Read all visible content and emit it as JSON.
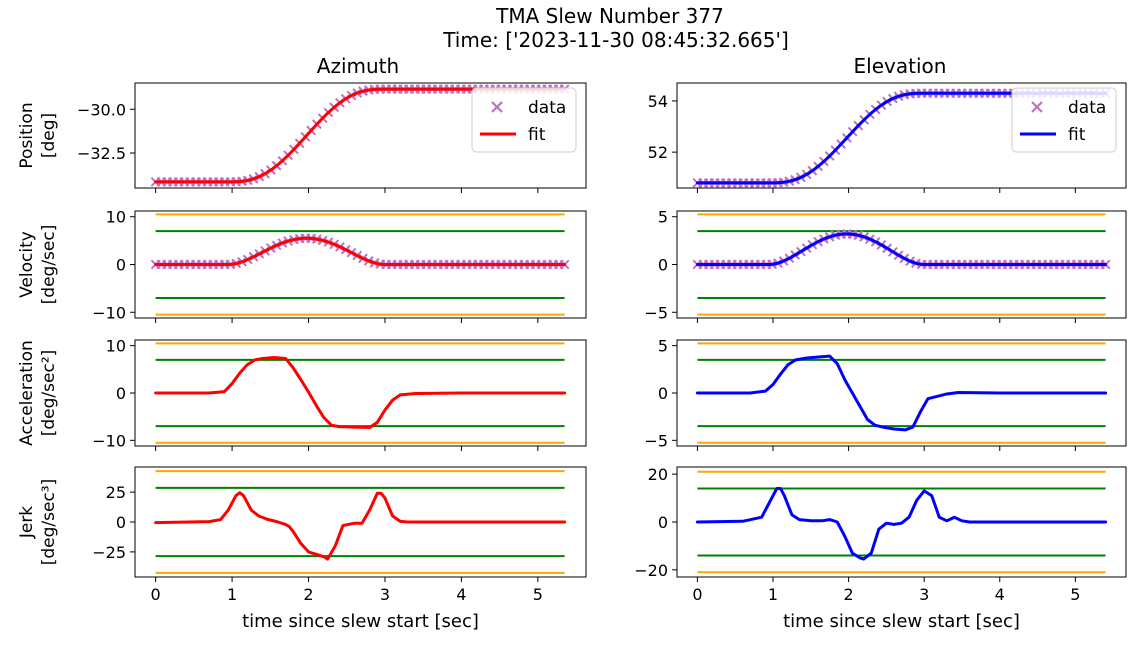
{
  "figure": {
    "title_line1": "TMA Slew Number 377",
    "title_line2": "Time: ['2023-11-30 08:45:32.665']"
  },
  "colors": {
    "az_fit": "#ff0000",
    "el_fit": "#0000ff",
    "data": "#bf6fc4",
    "limit_outer": "#ffa500",
    "limit_inner": "#008000"
  },
  "chart_data": [
    {
      "id": "az-position",
      "type": "line",
      "column": "Azimuth",
      "title": "Azimuth",
      "ylabel": "Position",
      "yunit": "[deg]",
      "ylim": [
        -34.5,
        -28.5
      ],
      "yticks": [
        -30.0,
        -32.5
      ],
      "ytick_labels": [
        "−30.0",
        "−32.5"
      ],
      "xlim": [
        -0.27,
        5.63
      ],
      "show_xlabels": false,
      "legend": {
        "position": "upper right",
        "entries": [
          "data",
          "fit"
        ]
      },
      "series": [
        {
          "name": "data",
          "marker": "x",
          "profile": "position",
          "x0": 0,
          "x1": 5.35,
          "start": -34.15,
          "end": -28.85,
          "t_start": 0.95,
          "t_end": 3.0
        },
        {
          "name": "fit",
          "profile": "position",
          "x0": 0,
          "x1": 5.35,
          "start": -34.15,
          "end": -28.85,
          "t_start": 0.95,
          "t_end": 3.0
        }
      ]
    },
    {
      "id": "az-velocity",
      "type": "line",
      "column": "Azimuth",
      "ylabel": "Velocity",
      "yunit": "[deg/sec]",
      "ylim": [
        -11.2,
        11.2
      ],
      "yticks": [
        10,
        0,
        -10
      ],
      "ytick_labels": [
        "10",
        "0",
        "−10"
      ],
      "xlim": [
        -0.27,
        5.63
      ],
      "show_xlabels": false,
      "limits": {
        "inner": 7.0,
        "outer": 10.5,
        "x0": 0,
        "x1": 5.35
      },
      "series": [
        {
          "name": "data",
          "marker": "x",
          "profile": "velocity",
          "x0": 0,
          "x1": 5.35,
          "peak": 5.5,
          "t_start": 0.95,
          "t_end": 3.0
        },
        {
          "name": "fit",
          "profile": "velocity",
          "x0": 0,
          "x1": 5.35,
          "peak": 5.5,
          "t_start": 0.95,
          "t_end": 3.0
        }
      ]
    },
    {
      "id": "az-acceleration",
      "type": "line",
      "column": "Azimuth",
      "ylabel": "Acceleration",
      "yunit": "[deg/sec²]",
      "ylim": [
        -11.2,
        11.2
      ],
      "yticks": [
        10,
        0,
        -10
      ],
      "ytick_labels": [
        "10",
        "0",
        "−10"
      ],
      "xlim": [
        -0.27,
        5.63
      ],
      "show_xlabels": false,
      "limits": {
        "inner": 7.0,
        "outer": 10.5,
        "x0": 0,
        "x1": 5.35
      },
      "series": [
        {
          "name": "fit",
          "x": [
            0,
            0.7,
            0.9,
            1.0,
            1.1,
            1.2,
            1.3,
            1.4,
            1.55,
            1.7,
            1.8,
            1.9,
            2.0,
            2.1,
            2.2,
            2.3,
            2.4,
            2.6,
            2.8,
            2.9,
            3.0,
            3.1,
            3.2,
            3.4,
            4.0,
            5.35
          ],
          "y": [
            0,
            0,
            0.3,
            2.0,
            4.2,
            6.0,
            7.0,
            7.3,
            7.5,
            7.3,
            5.3,
            2.8,
            0.2,
            -2.6,
            -5.2,
            -6.8,
            -7.1,
            -7.2,
            -7.3,
            -6.2,
            -3.6,
            -1.5,
            -0.4,
            -0.1,
            0,
            0
          ]
        }
      ]
    },
    {
      "id": "az-jerk",
      "type": "line",
      "column": "Azimuth",
      "ylabel": "Jerk",
      "yunit": "[deg/sec³]",
      "ylim": [
        -46,
        46
      ],
      "yticks": [
        25,
        0,
        -25
      ],
      "ytick_labels": [
        "25",
        "0",
        "−25"
      ],
      "xlim": [
        -0.27,
        5.63
      ],
      "show_xlabels": true,
      "xticks": [
        0,
        1,
        2,
        3,
        4,
        5
      ],
      "xlabel": "time since slew start [sec]",
      "limits": {
        "inner": 28.5,
        "outer": 42.5,
        "x0": 0,
        "x1": 5.35
      },
      "series": [
        {
          "name": "fit",
          "x": [
            0,
            0.7,
            0.85,
            0.95,
            1.05,
            1.1,
            1.15,
            1.25,
            1.35,
            1.45,
            1.6,
            1.7,
            1.75,
            1.8,
            1.9,
            2.0,
            2.1,
            2.2,
            2.25,
            2.35,
            2.45,
            2.6,
            2.7,
            2.8,
            2.9,
            2.95,
            3.0,
            3.1,
            3.2,
            3.3,
            4.0,
            5.35
          ],
          "y": [
            -0.5,
            0.3,
            2,
            10,
            22,
            24.5,
            22,
            10,
            5,
            2.5,
            0,
            -2,
            -4,
            -8,
            -18,
            -25,
            -27,
            -29,
            -31,
            -20,
            -3,
            -1,
            -1,
            10,
            24,
            24,
            20,
            5,
            0.5,
            0,
            0,
            0
          ]
        }
      ]
    },
    {
      "id": "el-position",
      "type": "line",
      "column": "Elevation",
      "title": "Elevation",
      "ylabel": "",
      "yunit": "",
      "ylim": [
        50.6,
        54.7
      ],
      "yticks": [
        54,
        52
      ],
      "ytick_labels": [
        "54",
        "52"
      ],
      "xlim": [
        -0.27,
        5.67
      ],
      "show_xlabels": false,
      "legend": {
        "position": "upper right",
        "entries": [
          "data",
          "fit"
        ]
      },
      "series": [
        {
          "name": "data",
          "marker": "x",
          "profile": "position",
          "x0": 0,
          "x1": 5.4,
          "start": 50.8,
          "end": 54.3,
          "t_start": 0.95,
          "t_end": 3.0
        },
        {
          "name": "fit",
          "profile": "position",
          "x0": 0,
          "x1": 5.4,
          "start": 50.8,
          "end": 54.3,
          "t_start": 0.95,
          "t_end": 3.0
        }
      ]
    },
    {
      "id": "el-velocity",
      "type": "line",
      "column": "Elevation",
      "ylabel": "",
      "yunit": "",
      "ylim": [
        -5.6,
        5.6
      ],
      "yticks": [
        5,
        0,
        -5
      ],
      "ytick_labels": [
        "5",
        "0",
        "−5"
      ],
      "xlim": [
        -0.27,
        5.67
      ],
      "show_xlabels": false,
      "limits": {
        "inner": 3.5,
        "outer": 5.25,
        "x0": 0,
        "x1": 5.4
      },
      "series": [
        {
          "name": "data",
          "marker": "x",
          "profile": "velocity",
          "x0": 0,
          "x1": 5.4,
          "peak": 3.2,
          "t_start": 0.95,
          "t_end": 3.0
        },
        {
          "name": "fit",
          "profile": "velocity",
          "x0": 0,
          "x1": 5.4,
          "peak": 3.2,
          "t_start": 0.95,
          "t_end": 3.0
        }
      ]
    },
    {
      "id": "el-acceleration",
      "type": "line",
      "column": "Elevation",
      "ylabel": "",
      "yunit": "",
      "ylim": [
        -5.6,
        5.6
      ],
      "yticks": [
        5,
        0,
        -5
      ],
      "ytick_labels": [
        "5",
        "0",
        "−5"
      ],
      "xlim": [
        -0.27,
        5.67
      ],
      "show_xlabels": false,
      "limits": {
        "inner": 3.5,
        "outer": 5.25,
        "x0": 0,
        "x1": 5.4
      },
      "series": [
        {
          "name": "fit",
          "x": [
            0,
            0.7,
            0.9,
            1.0,
            1.1,
            1.2,
            1.3,
            1.45,
            1.6,
            1.75,
            1.85,
            1.95,
            2.05,
            2.15,
            2.25,
            2.35,
            2.45,
            2.6,
            2.75,
            2.85,
            2.95,
            3.05,
            3.3,
            3.45,
            4.0,
            5.4
          ],
          "y": [
            0,
            0,
            0.2,
            0.9,
            2.0,
            3.0,
            3.5,
            3.7,
            3.8,
            3.9,
            3.1,
            1.4,
            0.0,
            -1.4,
            -2.8,
            -3.4,
            -3.6,
            -3.8,
            -3.9,
            -3.6,
            -2.0,
            -0.6,
            -0.1,
            0.05,
            0,
            0
          ]
        }
      ]
    },
    {
      "id": "el-jerk",
      "type": "line",
      "column": "Elevation",
      "ylabel": "",
      "yunit": "",
      "ylim": [
        -23,
        23
      ],
      "yticks": [
        20,
        0,
        -20
      ],
      "ytick_labels": [
        "20",
        "0",
        "−20"
      ],
      "xlim": [
        -0.27,
        5.67
      ],
      "show_xlabels": true,
      "xticks": [
        0,
        1,
        2,
        3,
        4,
        5
      ],
      "xlabel": "time since slew start [sec]",
      "limits": {
        "inner": 14.0,
        "outer": 21.0,
        "x0": 0,
        "x1": 5.4
      },
      "series": [
        {
          "name": "fit",
          "x": [
            0,
            0.6,
            0.85,
            0.95,
            1.05,
            1.1,
            1.15,
            1.25,
            1.35,
            1.5,
            1.65,
            1.75,
            1.85,
            1.95,
            2.05,
            2.15,
            2.2,
            2.3,
            2.4,
            2.5,
            2.6,
            2.7,
            2.8,
            2.9,
            3.0,
            3.1,
            3.2,
            3.3,
            3.4,
            3.5,
            3.6,
            4.0,
            5.4
          ],
          "y": [
            0,
            0.3,
            2,
            8,
            14,
            14,
            11,
            3,
            1,
            0.5,
            0.5,
            1,
            0,
            -6,
            -13,
            -15,
            -15.5,
            -13,
            -3,
            -0.5,
            -1,
            -0.5,
            2,
            9,
            13,
            11,
            2,
            0.5,
            2,
            0.5,
            0,
            0,
            0
          ]
        }
      ]
    }
  ]
}
